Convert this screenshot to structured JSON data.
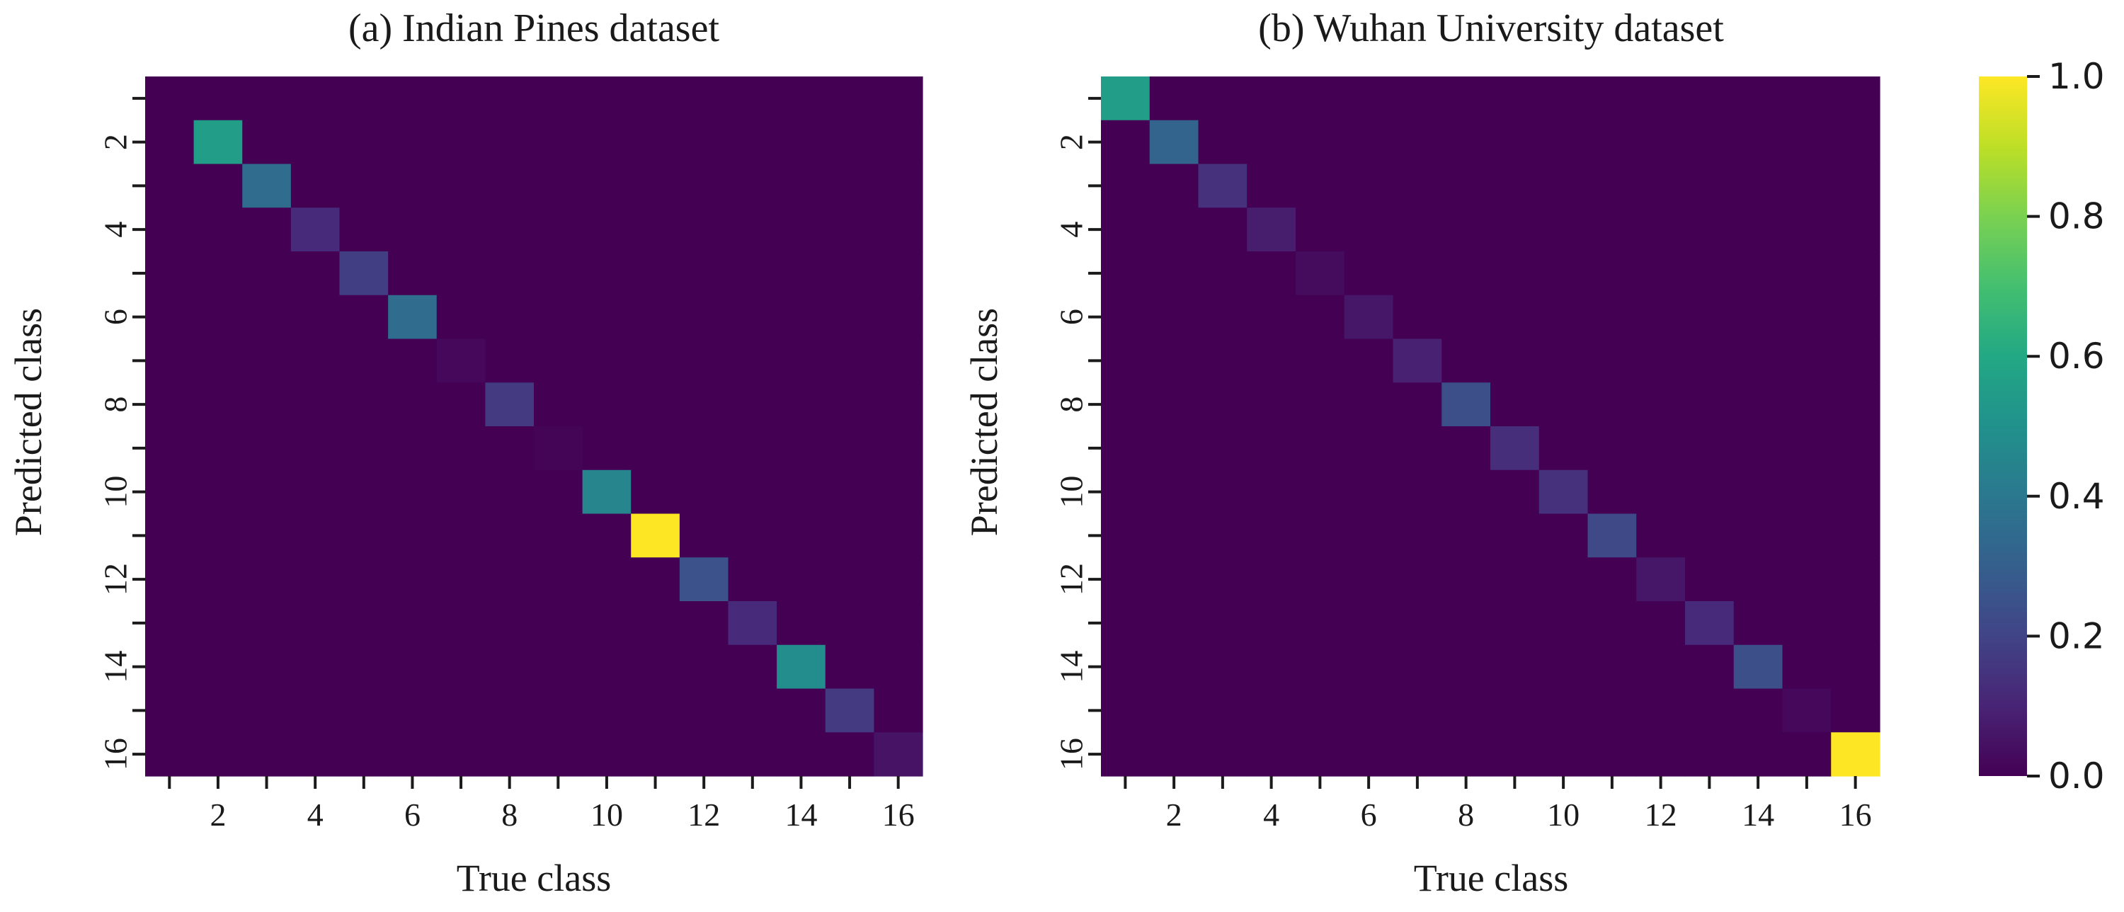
{
  "chart_data": [
    {
      "type": "heatmap",
      "title": "(a) Indian Pines dataset",
      "xlabel": "True class",
      "ylabel": "Predicted class",
      "n_classes": 16,
      "x_tick_labels": [
        "2",
        "4",
        "6",
        "8",
        "10",
        "12",
        "14",
        "16"
      ],
      "y_tick_labels": [
        "2",
        "4",
        "6",
        "8",
        "10",
        "12",
        "14",
        "16"
      ],
      "off_diagonal_value": 0.0,
      "diagonal_values": [
        0.0,
        0.55,
        0.35,
        0.12,
        0.18,
        0.35,
        0.02,
        0.17,
        0.01,
        0.45,
        1.0,
        0.25,
        0.12,
        0.48,
        0.17,
        0.05
      ]
    },
    {
      "type": "heatmap",
      "title": "(b) Wuhan University dataset",
      "xlabel": "True class",
      "ylabel": "Predicted class",
      "n_classes": 16,
      "x_tick_labels": [
        "2",
        "4",
        "6",
        "8",
        "10",
        "12",
        "14",
        "16"
      ],
      "y_tick_labels": [
        "2",
        "4",
        "6",
        "8",
        "10",
        "12",
        "14",
        "16"
      ],
      "off_diagonal_value": 0.0,
      "diagonal_values": [
        0.55,
        0.32,
        0.14,
        0.08,
        0.03,
        0.06,
        0.09,
        0.24,
        0.13,
        0.14,
        0.22,
        0.06,
        0.12,
        0.24,
        0.02,
        1.0
      ]
    }
  ],
  "colorbar": {
    "colormap": "viridis",
    "range": [
      0.0,
      1.0
    ],
    "ticks": [
      0.0,
      0.2,
      0.4,
      0.6,
      0.8,
      1.0
    ],
    "tick_labels": [
      "0.0",
      "0.2",
      "0.4",
      "0.6",
      "0.8",
      "1.0"
    ]
  }
}
